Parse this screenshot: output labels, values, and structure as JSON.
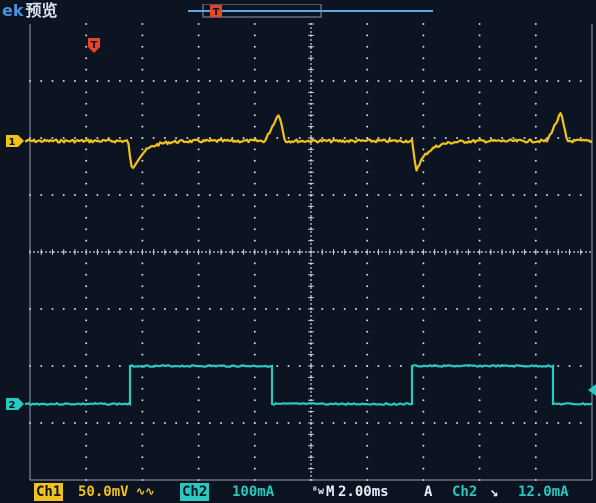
{
  "header": {
    "brand_prefix": "ek",
    "mode": "预览",
    "trigger_marker": "T"
  },
  "channels": {
    "ch1": {
      "marker": "1",
      "color": "#f2c21b"
    },
    "ch2": {
      "marker": "2",
      "color": "#27c9c0"
    }
  },
  "status": {
    "ch1_label": "Ch1",
    "ch1_scale": "50.0mV",
    "ch1_coupling": "AC (∿∿)",
    "ch2_label": "Ch2",
    "ch2_scale": "100mA",
    "timebase_prefix": "M",
    "timebase": "2.00ms",
    "trigger_mode": "A",
    "trigger_source": "Ch2",
    "trigger_slope": "falling",
    "trigger_level": "12.0mA"
  },
  "colors": {
    "background": "#0d1421",
    "grid": "#cfd6e0",
    "trigger_marker": "#e8442a"
  }
}
